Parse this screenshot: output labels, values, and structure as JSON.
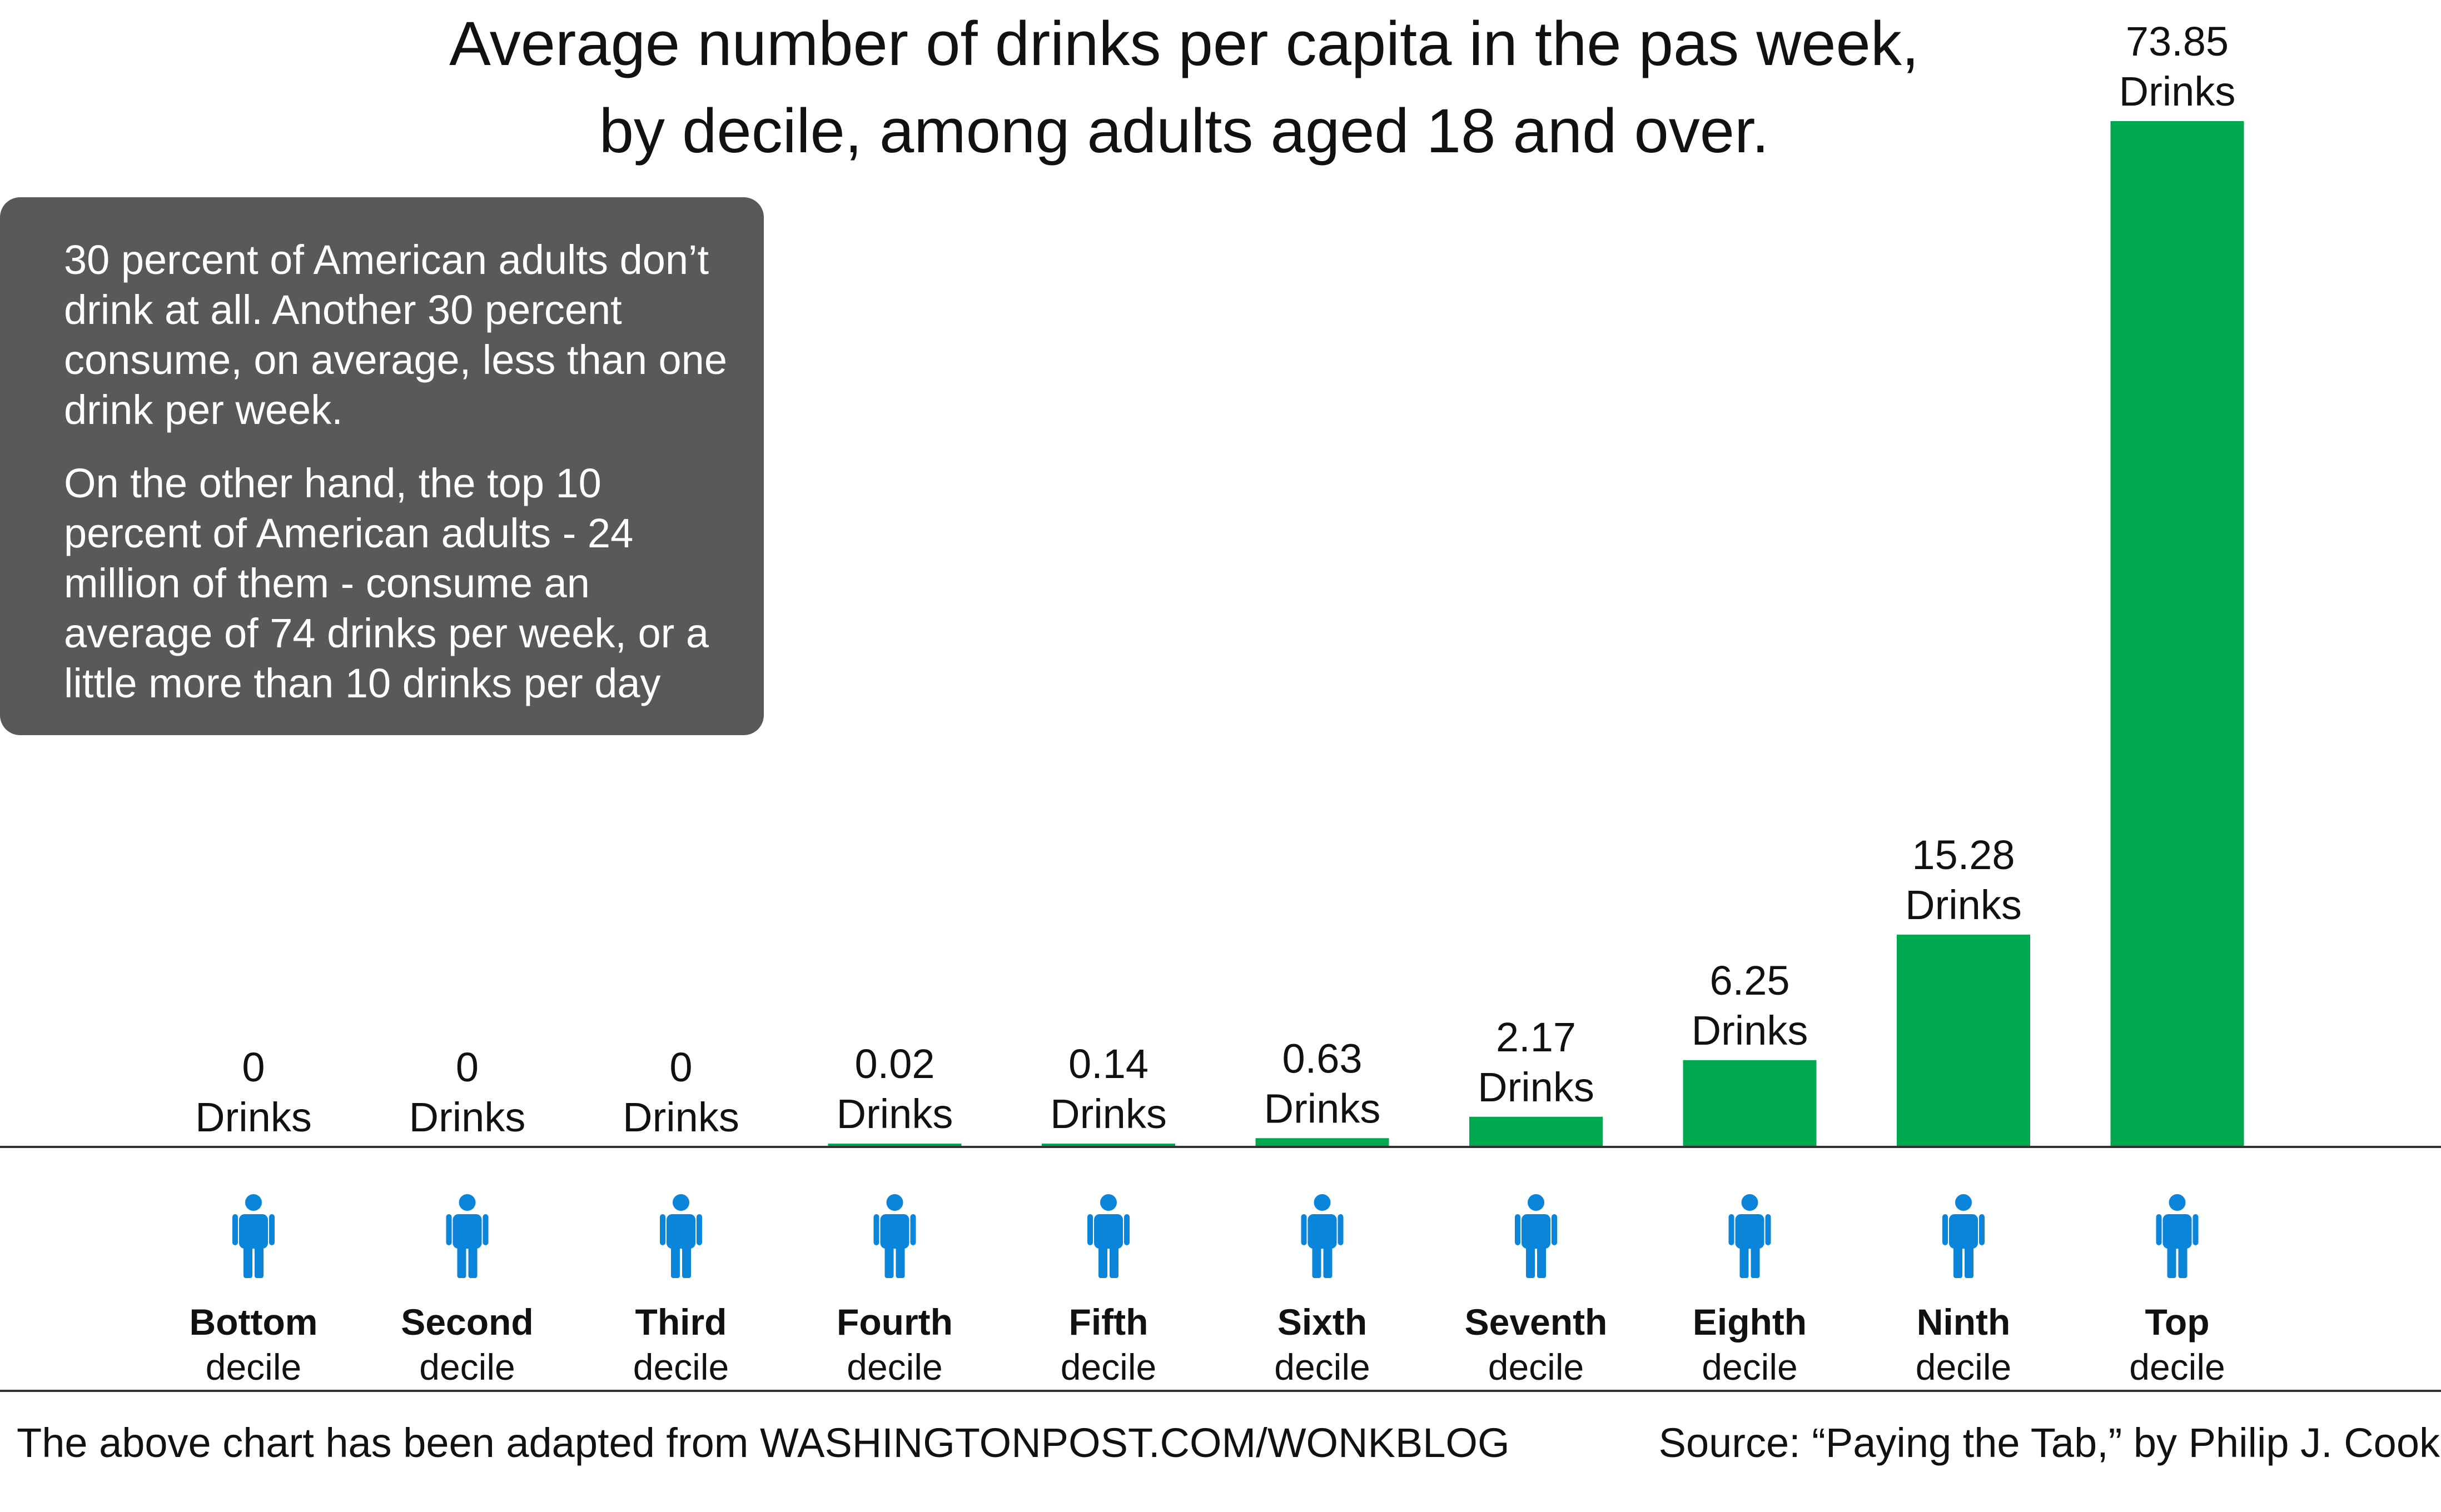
{
  "title_lines": [
    "Average number of drinks per capita in the pas week,",
    "by decile, among adults aged 18 and over."
  ],
  "callout": {
    "paragraphs": [
      "30 percent of American adults don’t drink at all.  Another 30 percent consume, on average, less than one drink per week.",
      "On the other hand, the top 10 percent of American adults - 24 million of them - consume an average of 74 drinks per week, or a little more than 10 drinks per day"
    ],
    "background": "#595959",
    "text_color": "#ffffff"
  },
  "footer": {
    "left": "The above chart has been adapted from WASHINGTONPOST.COM/WONKBLOG",
    "right": "Source: “Paying the Tab,” by Philip J. Cook"
  },
  "colors": {
    "bar": "#00a94f",
    "person_icon": "#0a85d9",
    "axis": "#333333",
    "text": "#111111"
  },
  "icons": {
    "category_icon": "person-icon"
  },
  "chart_data": {
    "type": "bar",
    "title": "Average number of drinks per capita in the pas week, by decile, among adults aged 18 and over.",
    "xlabel": "",
    "ylabel": "",
    "ylim": [
      0,
      73.85
    ],
    "grid": false,
    "legend": "none",
    "value_unit": "Drinks",
    "value_labels": [
      "0",
      "0",
      "0",
      "0.02",
      "0.14",
      "0.63",
      "2.17",
      "6.25",
      "15.28",
      "73.85"
    ],
    "values": [
      0,
      0,
      0,
      0.02,
      0.14,
      0.63,
      2.17,
      6.25,
      15.28,
      73.85
    ],
    "categories": [
      {
        "name": "Bottom",
        "sub": "decile"
      },
      {
        "name": "Second",
        "sub": "decile"
      },
      {
        "name": "Third",
        "sub": "decile"
      },
      {
        "name": "Fourth",
        "sub": "decile"
      },
      {
        "name": "Fifth",
        "sub": "decile"
      },
      {
        "name": "Sixth",
        "sub": "decile"
      },
      {
        "name": "Seventh",
        "sub": "decile"
      },
      {
        "name": "Eighth",
        "sub": "decile"
      },
      {
        "name": "Ninth",
        "sub": "decile"
      },
      {
        "name": "Top",
        "sub": "decile"
      }
    ]
  }
}
